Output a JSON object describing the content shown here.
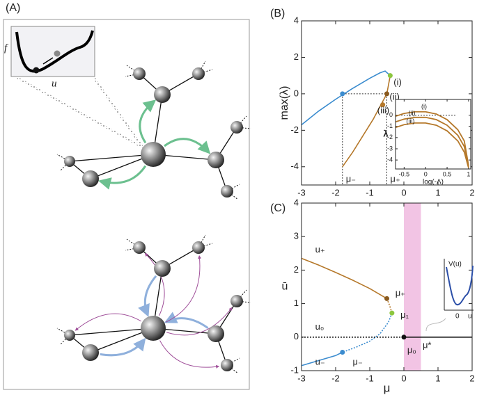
{
  "panel_labels": [
    "(A)",
    "(B)",
    "(C)"
  ],
  "panel_a": {
    "inset": {
      "ylabel": "f",
      "xlabel": "u"
    }
  },
  "panel_c_inset": {
    "ylabel": "V(u)",
    "origin": "0",
    "xlabel": "u"
  },
  "chart_data": [
    {
      "type": "line",
      "ylabel": "max(λ)",
      "xlim": [
        -3,
        2
      ],
      "ylim": [
        -5,
        4
      ],
      "xticks": [
        -3,
        -2,
        -1,
        0,
        1,
        2
      ],
      "yticks": [
        -4,
        -2,
        0,
        2,
        4
      ],
      "series": [
        {
          "color": "#3b8ccf",
          "dashed": false,
          "x": [
            -3,
            -2.5,
            -2,
            -1.5,
            -1,
            -0.7,
            -0.55,
            -0.4
          ],
          "values": [
            -1.7,
            -0.95,
            -0.3,
            0.3,
            0.85,
            1.15,
            1.25,
            1.0
          ]
        },
        {
          "color": "#b5782a",
          "dashed": false,
          "x": [
            -1.8,
            -1.5,
            -1.2,
            -0.9,
            -0.7,
            -0.5,
            -0.4
          ],
          "values": [
            -4,
            -3.2,
            -2.3,
            -1.4,
            -0.7,
            0,
            1.0
          ]
        }
      ],
      "guides": [
        {
          "x": [
            -1.8,
            -0.5
          ],
          "y": [
            0,
            0
          ]
        },
        {
          "x": [
            -1.8,
            -1.8
          ],
          "y": [
            0,
            -5
          ]
        },
        {
          "x": [
            -0.5,
            -0.5
          ],
          "y": [
            0,
            -5
          ]
        }
      ],
      "points": [
        {
          "x": -1.8,
          "y": 0,
          "color": "#3b8ccf"
        },
        {
          "x": -0.5,
          "y": 0,
          "color": "#8a5a1e"
        },
        {
          "x": -0.4,
          "y": 1.0,
          "color": "#8cc63f"
        },
        {
          "x": -0.62,
          "y": -0.6,
          "color": "#b5782a"
        }
      ],
      "annotations": [
        {
          "text": "μ₋",
          "x": -1.7,
          "y": -4.7,
          "color": "#3b8ccf"
        },
        {
          "text": "μ₊",
          "x": -0.4,
          "y": -4.7,
          "color": "#b5782a"
        },
        {
          "text": "(i)",
          "x": -0.3,
          "y": 0.6,
          "color": "#222"
        },
        {
          "text": "(ii)",
          "x": -0.42,
          "y": -0.2,
          "color": "#222"
        },
        {
          "text": "(iii)",
          "x": -0.78,
          "y": -0.95,
          "color": "#222"
        }
      ]
    },
    {
      "type": "line",
      "ylabel": "λ",
      "xlabel": "log(-Λ)",
      "xlim": [
        -0.7,
        1.05
      ],
      "ylim": [
        -4.8,
        1.4
      ],
      "xticks": [
        -0.5,
        0,
        0.5,
        1
      ],
      "yticks": [
        0,
        -1,
        -2,
        -3,
        -4
      ],
      "series": [
        {
          "color": "#b5782a",
          "dashed": false,
          "x": [
            -0.7,
            -0.5,
            -0.25,
            0,
            0.25,
            0.5,
            0.75,
            0.9,
            1.0
          ],
          "values": [
            -0.1,
            0.15,
            0.3,
            0.3,
            0.1,
            -0.4,
            -1.3,
            -2.3,
            -4.5
          ]
        },
        {
          "color": "#b5782a",
          "dashed": false,
          "x": [
            -0.7,
            -0.5,
            -0.25,
            0,
            0.25,
            0.5,
            0.75,
            0.9,
            1.0
          ],
          "values": [
            -0.6,
            -0.35,
            -0.2,
            -0.2,
            -0.4,
            -0.9,
            -1.8,
            -2.8,
            -4.6
          ]
        },
        {
          "color": "#b5782a",
          "dashed": false,
          "x": [
            -0.7,
            -0.5,
            -0.25,
            0,
            0.25,
            0.5,
            0.75,
            0.9,
            1.0
          ],
          "values": [
            -1.1,
            -0.85,
            -0.7,
            -0.7,
            -0.9,
            -1.4,
            -2.3,
            -3.3,
            -4.7
          ]
        }
      ],
      "guides": [
        {
          "x": [
            -0.7,
            0.72
          ],
          "y": [
            0,
            0
          ]
        }
      ],
      "annotations": [
        {
          "text": "(i)",
          "x": -0.1,
          "y": 0.75,
          "color": "#222"
        },
        {
          "text": "(ii)",
          "x": -0.4,
          "y": 0.15,
          "color": "#222"
        },
        {
          "text": "(iii)",
          "x": -0.45,
          "y": -0.55,
          "color": "#222"
        }
      ]
    },
    {
      "type": "line",
      "ylabel": "ū",
      "xlabel": "μ",
      "xlim": [
        -3,
        2
      ],
      "ylim": [
        -1,
        4
      ],
      "xticks": [
        -3,
        -2,
        -1,
        0,
        1,
        2
      ],
      "yticks": [
        -1,
        0,
        1,
        2,
        3,
        4
      ],
      "shaded_region": {
        "x": [
          0,
          0.5
        ],
        "color": "#f2c4e4"
      },
      "series": [
        {
          "color": "#b5782a",
          "dashed": false,
          "x": [
            -3,
            -2.5,
            -2,
            -1.5,
            -1,
            -0.5
          ],
          "values": [
            2.35,
            2.15,
            1.93,
            1.7,
            1.45,
            1.15
          ]
        },
        {
          "color": "#b5782a",
          "dashed": true,
          "x": [
            -0.5,
            -0.42,
            -0.35
          ],
          "values": [
            1.15,
            0.95,
            0.72
          ]
        },
        {
          "color": "#3b8ccf",
          "dashed": true,
          "x": [
            -0.35,
            -0.45,
            -0.7,
            -1.0,
            -1.4,
            -1.8
          ],
          "values": [
            0.72,
            0.45,
            0.1,
            -0.12,
            -0.3,
            -0.45
          ]
        },
        {
          "color": "#3b8ccf",
          "dashed": false,
          "x": [
            -3,
            -2.5,
            -2,
            -1.8
          ],
          "values": [
            -0.85,
            -0.7,
            -0.55,
            -0.45
          ]
        },
        {
          "color": "#111111",
          "dashed": true,
          "x": [
            -3,
            0
          ],
          "values": [
            0,
            0
          ]
        },
        {
          "color": "#111111",
          "dashed": false,
          "x": [
            0,
            2
          ],
          "values": [
            0,
            0
          ]
        }
      ],
      "points": [
        {
          "x": -0.5,
          "y": 1.15,
          "color": "#8a5a1e"
        },
        {
          "x": -0.35,
          "y": 0.72,
          "color": "#8cc63f"
        },
        {
          "x": -1.8,
          "y": -0.45,
          "color": "#3b8ccf"
        },
        {
          "x": 0,
          "y": 0,
          "color": "#111111"
        }
      ],
      "annotations": [
        {
          "text": "u₊",
          "x": -2.6,
          "y": 2.6,
          "color": "#b5782a"
        },
        {
          "text": "μ₊",
          "x": -0.25,
          "y": 1.3,
          "color": "#b5782a"
        },
        {
          "text": "μ₁",
          "x": -0.1,
          "y": 0.65,
          "color": "#8cc63f"
        },
        {
          "text": "u₀",
          "x": -2.6,
          "y": 0.3,
          "color": "#111111"
        },
        {
          "text": "u₋",
          "x": -2.6,
          "y": -0.75,
          "color": "#3b8ccf"
        },
        {
          "text": "μ₋",
          "x": -1.5,
          "y": -0.75,
          "color": "#3b8ccf"
        },
        {
          "text": "μ₀",
          "x": 0.1,
          "y": -0.4,
          "color": "#111111"
        },
        {
          "text": "μ*",
          "x": 0.55,
          "y": -0.25,
          "color": "#111111"
        }
      ]
    }
  ]
}
